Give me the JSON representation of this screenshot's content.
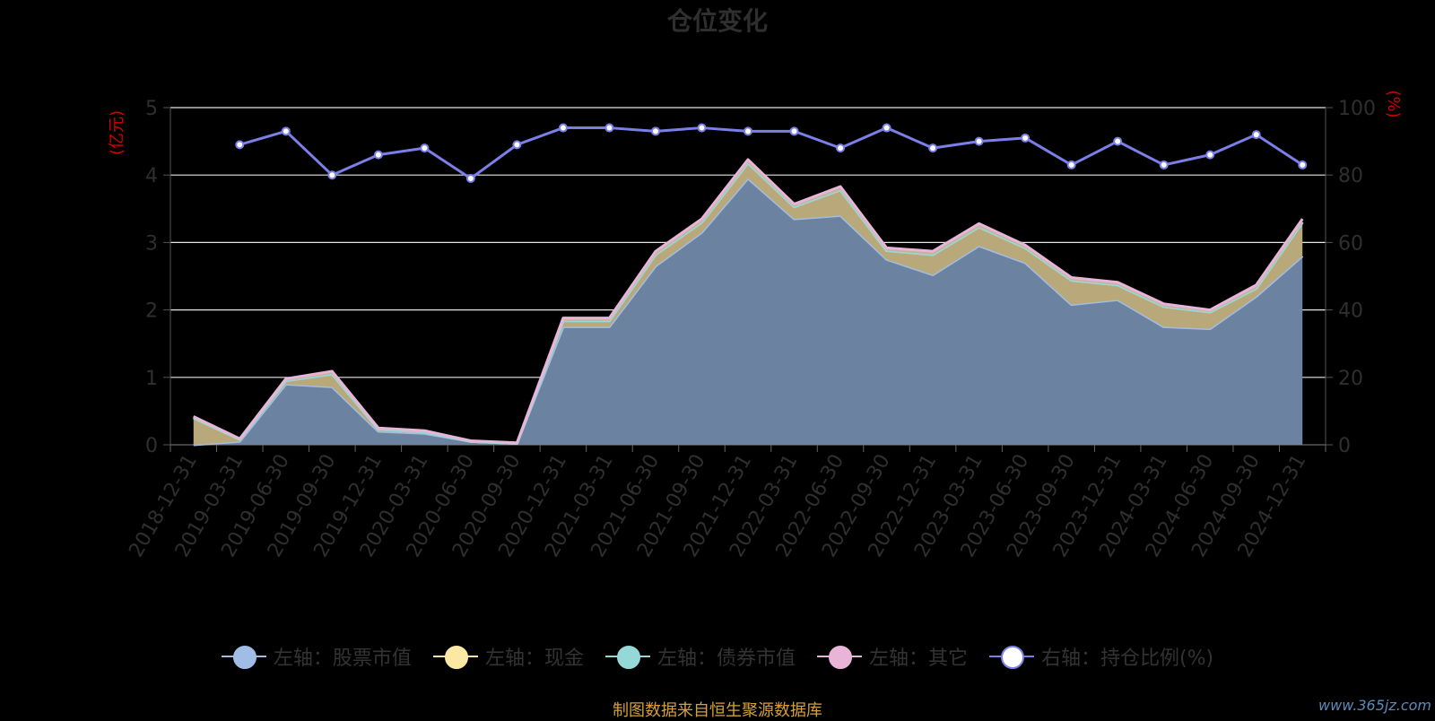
{
  "chart_data": {
    "type": "area",
    "title": "仓位变化",
    "ylabel_left": "(亿元)",
    "ylabel_right": "(%)",
    "ylim_left": [
      0,
      5
    ],
    "ylim_right": [
      0,
      100
    ],
    "yticks_left": [
      "0",
      "1",
      "2",
      "3",
      "4",
      "5"
    ],
    "yticks_right": [
      "0",
      "20",
      "40",
      "60",
      "80",
      "100"
    ],
    "grid": true,
    "legend_position": "bottom",
    "categories": [
      "2018-12-31",
      "2019-03-31",
      "2019-06-30",
      "2019-09-30",
      "2019-12-31",
      "2020-03-31",
      "2020-06-30",
      "2020-09-30",
      "2020-12-31",
      "2021-03-31",
      "2021-06-30",
      "2021-09-30",
      "2021-12-31",
      "2022-03-31",
      "2022-06-30",
      "2022-09-30",
      "2022-12-31",
      "2023-03-31",
      "2023-06-30",
      "2023-09-30",
      "2023-12-31",
      "2024-03-31",
      "2024-06-30",
      "2024-09-30",
      "2024-12-31"
    ],
    "series": [
      {
        "name": "左轴：股票市值",
        "axis": "left",
        "stack": true,
        "color": "#a0bde6",
        "values": [
          0.0,
          0.05,
          0.9,
          0.86,
          0.2,
          0.17,
          0.05,
          0.02,
          1.75,
          1.75,
          2.65,
          3.15,
          3.95,
          3.35,
          3.4,
          2.75,
          2.52,
          2.95,
          2.7,
          2.08,
          2.15,
          1.75,
          1.72,
          2.2,
          2.8
        ]
      },
      {
        "name": "左轴：现金",
        "axis": "left",
        "stack": true,
        "color": "#fbe8a5",
        "values": [
          0.4,
          0.03,
          0.05,
          0.19,
          0.03,
          0.02,
          0.0,
          0.0,
          0.09,
          0.09,
          0.17,
          0.15,
          0.23,
          0.18,
          0.38,
          0.13,
          0.3,
          0.28,
          0.22,
          0.36,
          0.22,
          0.3,
          0.25,
          0.12,
          0.5
        ]
      },
      {
        "name": "左轴：债券市值",
        "axis": "left",
        "stack": true,
        "color": "#95d8d8",
        "values": [
          0,
          0,
          0,
          0,
          0,
          0,
          0,
          0,
          0,
          0,
          0,
          0,
          0,
          0,
          0,
          0,
          0,
          0,
          0,
          0,
          0,
          0,
          0,
          0,
          0
        ]
      },
      {
        "name": "左轴：其它",
        "axis": "left",
        "stack": true,
        "color": "#e8b4d7",
        "values": [
          0.02,
          0.01,
          0.03,
          0.04,
          0.02,
          0.02,
          0.01,
          0.01,
          0.04,
          0.04,
          0.05,
          0.05,
          0.05,
          0.04,
          0.05,
          0.04,
          0.05,
          0.05,
          0.04,
          0.04,
          0.04,
          0.04,
          0.03,
          0.05,
          0.05
        ]
      },
      {
        "name": "右轴：持仓比例(%)",
        "axis": "right",
        "type": "line",
        "color": "#7b7fe8",
        "values": [
          null,
          89,
          93,
          80,
          86,
          88,
          79,
          89,
          94,
          94,
          93,
          94,
          93,
          93,
          88,
          94,
          88,
          90,
          91,
          83,
          90,
          83,
          86,
          92,
          83
        ]
      }
    ]
  },
  "source_note": "制图数据来自恒生聚源数据库",
  "watermark": "www.365jz.com"
}
